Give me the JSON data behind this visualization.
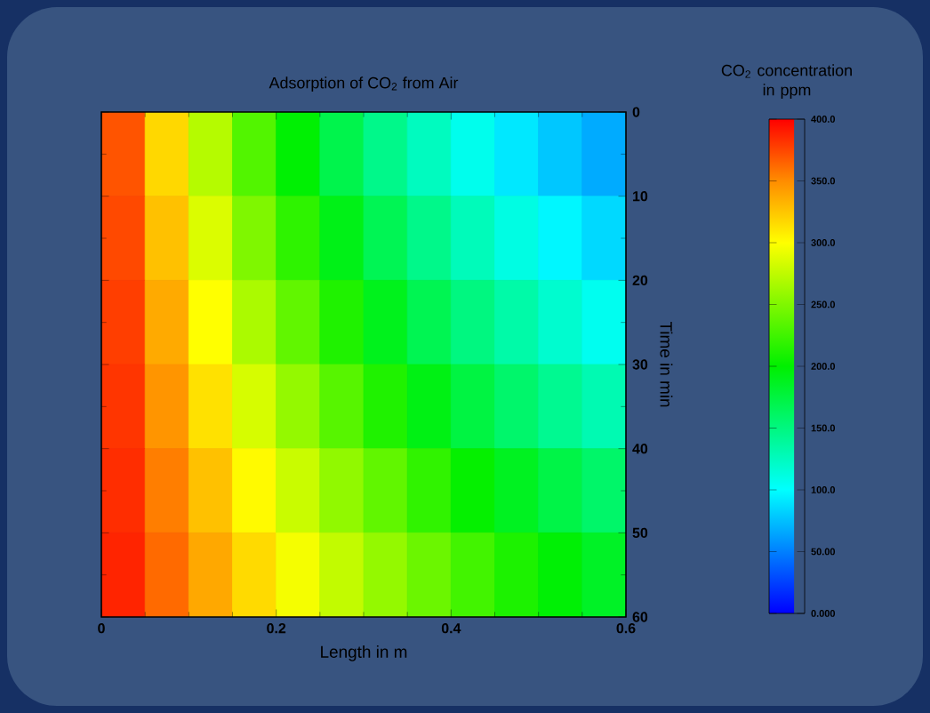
{
  "chart_data": {
    "type": "heatmap",
    "title": "Adsorption of CO$_{2}$ from Air",
    "xlabel": "Length in m",
    "ylabel": "Time in min",
    "clabel": "CO$_{2}$ concentration in ppm",
    "x": [
      0.025,
      0.075,
      0.125,
      0.175,
      0.225,
      0.275,
      0.325,
      0.375,
      0.425,
      0.475,
      0.525,
      0.575
    ],
    "y": [
      5,
      15,
      25,
      35,
      45,
      55
    ],
    "xlim": [
      0,
      0.6
    ],
    "xticks": [
      0,
      0.2,
      0.4,
      0.6
    ],
    "ylim": [
      60,
      0
    ],
    "yticks": [
      0,
      10,
      20,
      30,
      40,
      50,
      60
    ],
    "cells": [
      [
        370,
        317,
        271,
        232,
        199,
        170,
        146,
        125,
        107,
        91,
        78,
        67
      ],
      [
        374,
        327,
        286,
        250,
        218,
        191,
        167,
        146,
        127,
        111,
        97,
        85
      ],
      [
        378,
        337,
        300,
        267,
        238,
        212,
        189,
        168,
        150,
        134,
        119,
        106
      ],
      [
        381,
        346,
        313,
        284,
        258,
        234,
        212,
        192,
        174,
        158,
        143,
        130
      ],
      [
        384,
        355,
        327,
        302,
        279,
        257,
        238,
        219,
        202,
        187,
        172,
        159
      ],
      [
        387,
        362,
        338,
        316,
        296,
        276,
        258,
        242,
        226,
        211,
        198,
        185
      ]
    ],
    "clim": [
      0,
      400
    ],
    "cticks": [
      {
        "value": 0,
        "label": "0.000"
      },
      {
        "value": 50,
        "label": "50.00"
      },
      {
        "value": 100,
        "label": "100.0"
      },
      {
        "value": 150,
        "label": "150.0"
      },
      {
        "value": 200,
        "label": "200.0"
      },
      {
        "value": 250,
        "label": "250.0"
      },
      {
        "value": 300,
        "label": "300.0"
      },
      {
        "value": 350,
        "label": "350.0"
      },
      {
        "value": 400,
        "label": "400.0"
      }
    ],
    "grid": false
  }
}
